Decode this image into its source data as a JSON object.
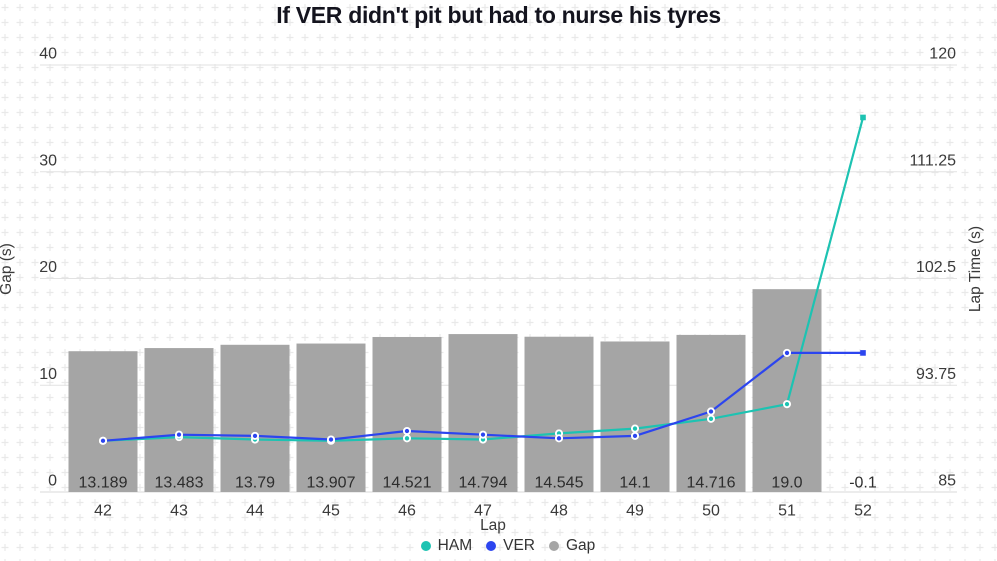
{
  "chart_data": {
    "type": "bar+line",
    "title": "If VER didn't pit but had to nurse his tyres",
    "xlabel": "Lap",
    "x": [
      42,
      43,
      44,
      45,
      46,
      47,
      48,
      49,
      50,
      51,
      52
    ],
    "left_axis": {
      "label": "Gap (s)",
      "range": [
        0,
        40
      ],
      "ticks": [
        0,
        10,
        20,
        30,
        40
      ],
      "tick_labels": [
        "0",
        "10",
        "20",
        "30",
        "40"
      ]
    },
    "right_axis": {
      "label": "Lap Time (s)",
      "range": [
        85,
        120
      ],
      "ticks": [
        85,
        93.75,
        102.5,
        111.25,
        120
      ],
      "tick_labels": [
        "85",
        "93.75",
        "102.5",
        "111.25",
        "120"
      ]
    },
    "bars": {
      "name": "Gap",
      "axis": "left",
      "color": "#a5a5a5",
      "values": [
        13.189,
        13.483,
        13.79,
        13.907,
        14.521,
        14.794,
        14.545,
        14.1,
        14.716,
        19.0,
        -0.1
      ],
      "labels": [
        "13.189",
        "13.483",
        "13.79",
        "13.907",
        "14.521",
        "14.794",
        "14.545",
        "14.1",
        "14.716",
        "19.0",
        "-0.1"
      ]
    },
    "series": [
      {
        "name": "HAM",
        "axis": "right",
        "color": "#1dc3b2",
        "values": [
          89.2,
          89.5,
          89.3,
          89.2,
          89.4,
          89.3,
          89.8,
          90.2,
          91.0,
          92.2,
          115.7
        ]
      },
      {
        "name": "VER",
        "axis": "right",
        "color": "#2c45ef",
        "values": [
          89.2,
          89.7,
          89.6,
          89.3,
          90.0,
          89.7,
          89.4,
          89.6,
          91.6,
          96.4,
          96.4
        ]
      }
    ],
    "legend": [
      {
        "label": "HAM",
        "color": "#1dc3b2"
      },
      {
        "label": "VER",
        "color": "#2c45ef"
      },
      {
        "label": "Gap",
        "color": "#a5a5a5"
      }
    ],
    "grid": true,
    "legend_position": "bottom-center",
    "colors": {
      "background": "#ffffff",
      "pattern_cross": "#e9e9e9",
      "gridline": "#e2e2e2",
      "baseline": "#d8d8d8",
      "tick_text": "#3a3a3a",
      "bar_label_text": "#2d2d2d",
      "title_text": "#14141e"
    }
  }
}
